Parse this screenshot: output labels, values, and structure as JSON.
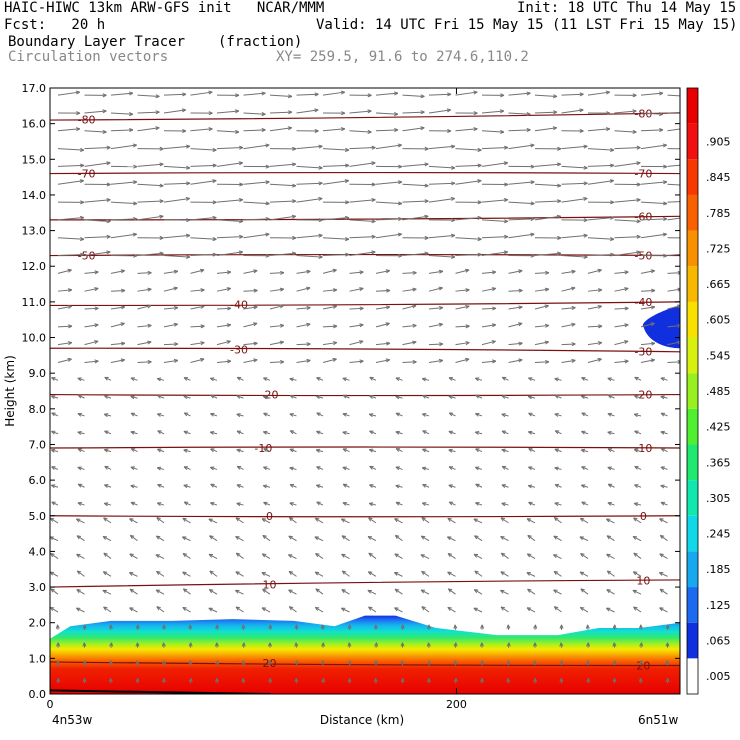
{
  "header": {
    "title_left": "HAIC-HIWC 13km ARW-GFS init   NCAR/MMM",
    "init": "Init: 18 UTC Thu 14 May 15",
    "fcst": "Fcst:   20 h",
    "valid": "Valid: 14 UTC Fri 15 May 15 (11 LST Fri 15 May 15)",
    "field": "Boundary Layer Tracer",
    "field_units": "(fraction)",
    "overlay": "Circulation vectors",
    "xy": "XY= 259.5, 91.6 to 274.6,110.2"
  },
  "chart_data": {
    "type": "heatmap",
    "ylabel": "Height (km)",
    "xlabel": "Distance (km)",
    "xlim": [
      0,
      310
    ],
    "ylim": [
      0,
      17
    ],
    "yticks": [
      "0.0",
      "1.0",
      "2.0",
      "3.0",
      "4.0",
      "5.0",
      "6.0",
      "7.0",
      "8.0",
      "9.0",
      "10.0",
      "11.0",
      "12.0",
      "13.0",
      "14.0",
      "15.0",
      "16.0",
      "17.0"
    ],
    "xticks": [
      {
        "value": 0,
        "label": "0"
      },
      {
        "value": 200,
        "label": "200"
      }
    ],
    "endpoint_left": "4n53w",
    "endpoint_right": "6n51w",
    "colorbar_labels": [
      ".005",
      ".065",
      ".125",
      ".185",
      ".245",
      ".305",
      ".365",
      ".425",
      ".485",
      ".545",
      ".605",
      ".665",
      ".725",
      ".785",
      ".845",
      ".905"
    ],
    "colorbar_colors": [
      "#ffffff",
      "#1030e0",
      "#1c6af0",
      "#18a8f0",
      "#10d8e8",
      "#10e8b0",
      "#20e870",
      "#50f030",
      "#98f020",
      "#d8f010",
      "#f8e000",
      "#f8b800",
      "#f89000",
      "#f86000",
      "#f83800",
      "#f01010",
      "#e80000"
    ],
    "boundary_layer_top_km": [
      {
        "x": 0,
        "y": 1.55
      },
      {
        "x": 10,
        "y": 1.9
      },
      {
        "x": 30,
        "y": 2.05
      },
      {
        "x": 60,
        "y": 2.05
      },
      {
        "x": 90,
        "y": 2.1
      },
      {
        "x": 120,
        "y": 2.05
      },
      {
        "x": 140,
        "y": 1.9
      },
      {
        "x": 155,
        "y": 2.2
      },
      {
        "x": 170,
        "y": 2.2
      },
      {
        "x": 190,
        "y": 1.85
      },
      {
        "x": 220,
        "y": 1.65
      },
      {
        "x": 250,
        "y": 1.65
      },
      {
        "x": 270,
        "y": 1.85
      },
      {
        "x": 290,
        "y": 1.85
      },
      {
        "x": 310,
        "y": 2.0
      }
    ],
    "upper_tracer_patch": {
      "x_from": 292,
      "x_to": 310,
      "y_from": 9.7,
      "y_to": 10.9
    },
    "isotherms": [
      {
        "label": "-80",
        "y_left": 16.1,
        "y_right": 16.3
      },
      {
        "label": "-70",
        "y_left": 14.6,
        "y_right": 14.6
      },
      {
        "label": "-60",
        "y_left": 13.3,
        "y_right": 13.4
      },
      {
        "label": "-50",
        "y_left": 12.3,
        "y_right": 12.3
      },
      {
        "label": "-40",
        "y_left": 10.9,
        "y_right": 11.0
      },
      {
        "label": "-30",
        "y_left": 9.7,
        "y_right": 9.6
      },
      {
        "label": "-20",
        "y_left": 8.4,
        "y_right": 8.4
      },
      {
        "label": "-10",
        "y_left": 6.9,
        "y_right": 6.9
      },
      {
        "label": "0",
        "y_left": 5.0,
        "y_right": 5.0
      },
      {
        "label": "10",
        "y_left": 3.0,
        "y_right": 3.2
      },
      {
        "label": "20",
        "y_left": 0.9,
        "y_right": 0.8
      }
    ],
    "isotherm_labels_drawn": [
      {
        "label": "-80",
        "x": 18,
        "side": "left"
      },
      {
        "label": "-80",
        "x": 292,
        "side": "right"
      },
      {
        "label": "-70",
        "x": 18,
        "side": "left"
      },
      {
        "label": "-70",
        "x": 292,
        "side": "right"
      },
      {
        "label": "-60",
        "x": 292,
        "side": "right"
      },
      {
        "label": "-50",
        "x": 18,
        "side": "left"
      },
      {
        "label": "-50",
        "x": 292,
        "side": "right"
      },
      {
        "label": "-40",
        "x": 93,
        "side": "mid"
      },
      {
        "label": "-40",
        "x": 292,
        "side": "right"
      },
      {
        "label": "-30",
        "x": 93,
        "side": "mid"
      },
      {
        "label": "-30",
        "x": 292,
        "side": "right"
      },
      {
        "label": "-20",
        "x": 108,
        "side": "mid"
      },
      {
        "label": "-20",
        "x": 292,
        "side": "right"
      },
      {
        "label": "-10",
        "x": 105,
        "side": "mid"
      },
      {
        "label": "-10",
        "x": 292,
        "side": "right"
      },
      {
        "label": "0",
        "x": 108,
        "side": "mid"
      },
      {
        "label": "0",
        "x": 292,
        "side": "right"
      },
      {
        "label": "10",
        "x": 108,
        "side": "mid"
      },
      {
        "label": "10",
        "x": 292,
        "side": "right"
      },
      {
        "label": "20",
        "x": 108,
        "side": "mid"
      },
      {
        "label": "20",
        "x": 292,
        "side": "right"
      }
    ]
  }
}
